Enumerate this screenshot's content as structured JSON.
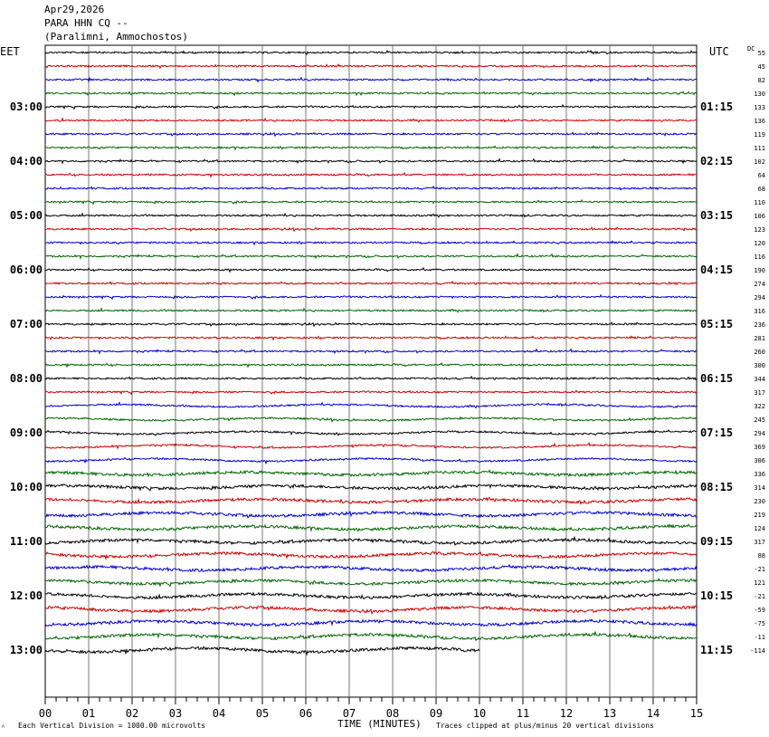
{
  "header": {
    "date": "Apr29,2026",
    "station": "PARA HHN CQ --",
    "location": "(Paralimni, Ammochostos)"
  },
  "left_zone_label": "EET",
  "right_zone_label": "UTC",
  "dc_label": "DC",
  "footer": {
    "scale_note": "Each Vertical Division = 1000.00 microvolts",
    "clip_note": "Traces clipped at plus/minus 20 vertical divisions",
    "corner_mark": "ᴬ"
  },
  "chart_data": {
    "type": "line",
    "xlabel": "TIME (MINUTES)",
    "x_ticks": [
      "00",
      "01",
      "02",
      "03",
      "04",
      "05",
      "06",
      "07",
      "08",
      "09",
      "10",
      "11",
      "12",
      "13",
      "14",
      "15"
    ],
    "xlim": [
      0,
      15
    ],
    "grid": true,
    "left_hour_labels": [
      "03:00",
      "04:00",
      "05:00",
      "06:00",
      "07:00",
      "08:00",
      "09:00",
      "10:00",
      "11:00",
      "12:00",
      "13:00"
    ],
    "right_hour_labels": [
      "01:15",
      "02:15",
      "03:15",
      "04:15",
      "05:15",
      "06:15",
      "07:15",
      "08:15",
      "09:15",
      "10:15",
      "11:15"
    ],
    "trace_colors": [
      "#000000",
      "#cc0000",
      "#0000cc",
      "#006600"
    ],
    "dc_offsets": [
      55,
      45,
      82,
      130,
      133,
      136,
      119,
      111,
      102,
      64,
      68,
      110,
      106,
      123,
      120,
      116,
      190,
      274,
      294,
      316,
      236,
      281,
      260,
      300,
      344,
      317,
      322,
      245,
      294,
      369,
      306,
      336,
      314,
      230,
      219,
      124,
      317,
      88,
      -21,
      121,
      -21,
      -59,
      -75,
      -11,
      -114
    ],
    "last_trace_end_minute": 10
  }
}
